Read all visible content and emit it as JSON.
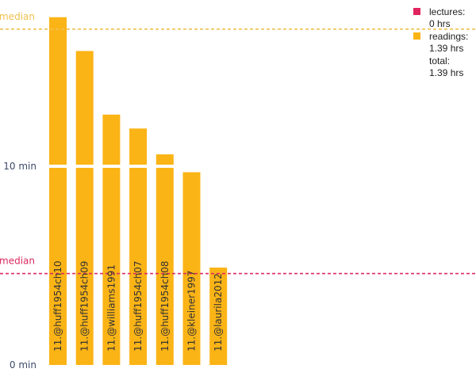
{
  "chart_data": {
    "type": "bar",
    "categories": [
      "11.@huff1954ch10",
      "11.@huff1954ch09",
      "11.@williams1991",
      "11.@huff1954ch07",
      "11.@huff1954ch08",
      "11.@kleiner1997",
      "11.@laurila2012"
    ],
    "values": [
      17.5,
      15.8,
      12.6,
      11.9,
      10.6,
      9.7,
      4.9
    ],
    "y_ticks": [
      {
        "value": 0,
        "label": "0 min"
      },
      {
        "value": 10,
        "label": "10 min"
      }
    ],
    "ylim": [
      0,
      17.5
    ],
    "bar_color": "#fbb416",
    "medians": [
      {
        "label": "median",
        "value": 16.9,
        "color": "#f0c050"
      },
      {
        "label": "median",
        "value": 4.6,
        "color": "#dc2a62"
      }
    ],
    "legend": {
      "position": "top-right",
      "items": [
        {
          "name": "lectures:",
          "value": "0 hrs",
          "color": "#e0245e"
        },
        {
          "name": "readings:",
          "value": "1.39 hrs",
          "color": "#fbb416"
        },
        {
          "name": "total:",
          "value": "1.39 hrs",
          "color": ""
        }
      ]
    }
  }
}
